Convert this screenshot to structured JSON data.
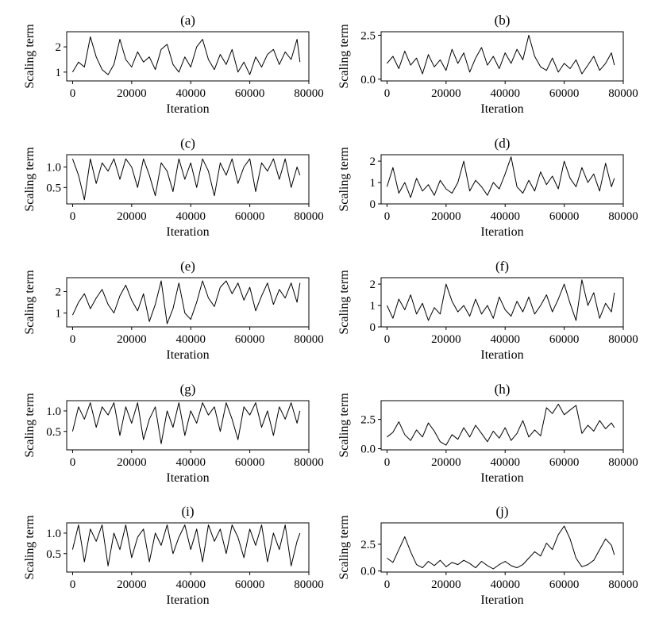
{
  "figure": {
    "series_color": "#000000",
    "background": "#ffffff"
  },
  "chart_data": [
    {
      "type": "line",
      "title": "(a)",
      "xlabel": "Iteration",
      "ylabel": "Scaling term",
      "xlim": [
        -2000,
        80000
      ],
      "ylim": [
        0.65,
        2.6
      ],
      "xticks": [
        0,
        20000,
        40000,
        60000,
        80000
      ],
      "yticks": [
        1,
        2
      ],
      "grid": false,
      "x": [
        0,
        2000,
        4000,
        6000,
        8000,
        10000,
        12000,
        14000,
        16000,
        18000,
        20000,
        22000,
        24000,
        26000,
        28000,
        30000,
        32000,
        34000,
        36000,
        38000,
        40000,
        42000,
        44000,
        46000,
        48000,
        50000,
        52000,
        54000,
        56000,
        58000,
        60000,
        62000,
        64000,
        66000,
        68000,
        70000,
        72000,
        74000,
        76000,
        77000
      ],
      "y": [
        1.0,
        1.4,
        1.2,
        2.4,
        1.6,
        1.1,
        0.9,
        1.3,
        2.3,
        1.5,
        1.2,
        1.8,
        1.4,
        1.6,
        1.1,
        1.9,
        2.1,
        1.3,
        1.0,
        1.6,
        1.2,
        2.0,
        2.3,
        1.5,
        1.1,
        1.7,
        1.3,
        1.9,
        1.0,
        1.4,
        0.9,
        1.6,
        1.2,
        1.7,
        1.9,
        1.3,
        1.8,
        1.5,
        2.3,
        1.4
      ]
    },
    {
      "type": "line",
      "title": "(b)",
      "xlabel": "Iteration",
      "ylabel": "Scaling term",
      "xlim": [
        -2000,
        80000
      ],
      "ylim": [
        -0.1,
        2.7
      ],
      "xticks": [
        0,
        20000,
        40000,
        60000,
        80000
      ],
      "yticks": [
        0.0,
        2.5
      ],
      "grid": false,
      "x": [
        0,
        2000,
        4000,
        6000,
        8000,
        10000,
        12000,
        14000,
        16000,
        18000,
        20000,
        22000,
        24000,
        26000,
        28000,
        30000,
        32000,
        34000,
        36000,
        38000,
        40000,
        42000,
        44000,
        46000,
        48000,
        50000,
        52000,
        54000,
        56000,
        58000,
        60000,
        62000,
        64000,
        66000,
        68000,
        70000,
        72000,
        74000,
        76000,
        77000
      ],
      "y": [
        0.9,
        1.3,
        0.6,
        1.6,
        0.8,
        1.2,
        0.3,
        1.4,
        0.7,
        1.1,
        0.5,
        1.7,
        0.9,
        1.5,
        0.4,
        1.2,
        1.8,
        0.8,
        1.3,
        0.6,
        1.5,
        0.9,
        1.7,
        1.1,
        2.5,
        1.3,
        0.7,
        0.5,
        1.2,
        0.4,
        0.9,
        0.6,
        1.1,
        0.3,
        0.8,
        1.3,
        0.5,
        0.9,
        1.5,
        0.8
      ]
    },
    {
      "type": "line",
      "title": "(c)",
      "xlabel": "Iteration",
      "ylabel": "Scaling term",
      "xlim": [
        -2000,
        80000
      ],
      "ylim": [
        0.1,
        1.3
      ],
      "xticks": [
        0,
        20000,
        40000,
        60000,
        80000
      ],
      "yticks": [
        0.5,
        1.0
      ],
      "grid": false,
      "x": [
        0,
        2000,
        4000,
        6000,
        8000,
        10000,
        12000,
        14000,
        16000,
        18000,
        20000,
        22000,
        24000,
        26000,
        28000,
        30000,
        32000,
        34000,
        36000,
        38000,
        40000,
        42000,
        44000,
        46000,
        48000,
        50000,
        52000,
        54000,
        56000,
        58000,
        60000,
        62000,
        64000,
        66000,
        68000,
        70000,
        72000,
        74000,
        76000,
        77000
      ],
      "y": [
        1.2,
        0.8,
        0.2,
        1.2,
        0.6,
        1.1,
        0.9,
        1.2,
        0.7,
        1.2,
        1.0,
        0.5,
        1.2,
        0.8,
        0.3,
        1.1,
        0.9,
        0.4,
        1.2,
        0.7,
        1.1,
        0.5,
        1.2,
        0.9,
        0.3,
        1.1,
        0.8,
        1.2,
        0.6,
        1.0,
        1.2,
        0.4,
        1.1,
        0.9,
        1.2,
        0.7,
        1.2,
        0.5,
        1.0,
        0.8
      ]
    },
    {
      "type": "line",
      "title": "(d)",
      "xlabel": "Iteration",
      "ylabel": "Scaling term",
      "xlim": [
        -2000,
        80000
      ],
      "ylim": [
        0,
        2.3
      ],
      "xticks": [
        0,
        20000,
        40000,
        60000,
        80000
      ],
      "yticks": [
        0,
        1,
        2
      ],
      "grid": false,
      "x": [
        0,
        2000,
        4000,
        6000,
        8000,
        10000,
        12000,
        14000,
        16000,
        18000,
        20000,
        22000,
        24000,
        26000,
        28000,
        30000,
        32000,
        34000,
        36000,
        38000,
        40000,
        42000,
        44000,
        46000,
        48000,
        50000,
        52000,
        54000,
        56000,
        58000,
        60000,
        62000,
        64000,
        66000,
        68000,
        70000,
        72000,
        74000,
        76000,
        77000
      ],
      "y": [
        0.8,
        1.7,
        0.5,
        1.0,
        0.3,
        1.2,
        0.6,
        0.9,
        0.4,
        1.1,
        0.7,
        0.5,
        1.0,
        2.0,
        0.6,
        1.1,
        0.8,
        0.4,
        1.0,
        0.7,
        1.4,
        2.2,
        0.8,
        0.5,
        1.1,
        0.6,
        1.5,
        0.9,
        1.3,
        0.7,
        2.0,
        1.2,
        0.8,
        1.7,
        1.0,
        1.4,
        0.6,
        1.9,
        0.8,
        1.2
      ]
    },
    {
      "type": "line",
      "title": "(e)",
      "xlabel": "Iteration",
      "ylabel": "Scaling term",
      "xlim": [
        -2000,
        80000
      ],
      "ylim": [
        0.35,
        2.65
      ],
      "xticks": [
        0,
        20000,
        40000,
        60000,
        80000
      ],
      "yticks": [
        1,
        2
      ],
      "grid": false,
      "x": [
        0,
        2000,
        4000,
        6000,
        8000,
        10000,
        12000,
        14000,
        16000,
        18000,
        20000,
        22000,
        24000,
        26000,
        28000,
        30000,
        32000,
        34000,
        36000,
        38000,
        40000,
        42000,
        44000,
        46000,
        48000,
        50000,
        52000,
        54000,
        56000,
        58000,
        60000,
        62000,
        64000,
        66000,
        68000,
        70000,
        72000,
        74000,
        76000,
        77000
      ],
      "y": [
        0.9,
        1.5,
        1.9,
        1.2,
        1.7,
        2.1,
        1.4,
        1.0,
        1.8,
        2.3,
        1.6,
        1.1,
        1.9,
        0.6,
        1.4,
        2.5,
        0.5,
        1.2,
        2.4,
        1.0,
        0.7,
        1.5,
        2.5,
        1.7,
        1.3,
        2.2,
        2.5,
        1.9,
        2.4,
        1.6,
        2.2,
        1.1,
        1.8,
        2.4,
        1.4,
        2.1,
        1.7,
        2.4,
        1.5,
        2.4
      ]
    },
    {
      "type": "line",
      "title": "(f)",
      "xlabel": "Iteration",
      "ylabel": "Scaling term",
      "xlim": [
        -2000,
        80000
      ],
      "ylim": [
        0,
        2.3
      ],
      "xticks": [
        0,
        20000,
        40000,
        60000,
        80000
      ],
      "yticks": [
        0,
        1,
        2
      ],
      "grid": false,
      "x": [
        0,
        2000,
        4000,
        6000,
        8000,
        10000,
        12000,
        14000,
        16000,
        18000,
        20000,
        22000,
        24000,
        26000,
        28000,
        30000,
        32000,
        34000,
        36000,
        38000,
        40000,
        42000,
        44000,
        46000,
        48000,
        50000,
        52000,
        54000,
        56000,
        58000,
        60000,
        62000,
        64000,
        66000,
        68000,
        70000,
        72000,
        74000,
        76000,
        77000
      ],
      "y": [
        1.0,
        0.4,
        1.3,
        0.8,
        1.5,
        0.6,
        1.1,
        0.3,
        0.9,
        0.6,
        2.0,
        1.2,
        0.7,
        1.0,
        0.5,
        1.3,
        0.6,
        1.0,
        0.4,
        1.4,
        0.8,
        0.5,
        1.2,
        0.7,
        1.4,
        0.6,
        1.0,
        1.5,
        0.7,
        1.3,
        2.0,
        1.1,
        0.3,
        2.2,
        1.0,
        1.6,
        0.4,
        1.1,
        0.7,
        1.6
      ]
    },
    {
      "type": "line",
      "title": "(g)",
      "xlabel": "Iteration",
      "ylabel": "Scaling term",
      "xlim": [
        -2000,
        80000
      ],
      "ylim": [
        0.05,
        1.25
      ],
      "xticks": [
        0,
        20000,
        40000,
        60000,
        80000
      ],
      "yticks": [
        0.5,
        1.0
      ],
      "grid": false,
      "x": [
        0,
        2000,
        4000,
        6000,
        8000,
        10000,
        12000,
        14000,
        16000,
        18000,
        20000,
        22000,
        24000,
        26000,
        28000,
        30000,
        32000,
        34000,
        36000,
        38000,
        40000,
        42000,
        44000,
        46000,
        48000,
        50000,
        52000,
        54000,
        56000,
        58000,
        60000,
        62000,
        64000,
        66000,
        68000,
        70000,
        72000,
        74000,
        76000,
        77000
      ],
      "y": [
        0.5,
        1.1,
        0.8,
        1.2,
        0.6,
        1.1,
        0.9,
        1.2,
        0.4,
        1.1,
        0.7,
        1.2,
        0.3,
        0.8,
        1.1,
        0.2,
        1.0,
        0.6,
        1.2,
        0.4,
        1.0,
        0.7,
        1.2,
        0.9,
        1.1,
        0.5,
        1.2,
        0.8,
        0.3,
        1.1,
        0.9,
        1.2,
        0.6,
        1.0,
        0.4,
        1.1,
        0.8,
        1.2,
        0.7,
        1.0
      ]
    },
    {
      "type": "line",
      "title": "(h)",
      "xlabel": "Iteration",
      "ylabel": "Scaling term",
      "xlim": [
        -2000,
        80000
      ],
      "ylim": [
        -0.1,
        4.1
      ],
      "xticks": [
        0,
        20000,
        40000,
        60000,
        80000
      ],
      "yticks": [
        0.0,
        2.5
      ],
      "grid": false,
      "x": [
        0,
        2000,
        4000,
        6000,
        8000,
        10000,
        12000,
        14000,
        16000,
        18000,
        20000,
        22000,
        24000,
        26000,
        28000,
        30000,
        32000,
        34000,
        36000,
        38000,
        40000,
        42000,
        44000,
        46000,
        48000,
        50000,
        52000,
        54000,
        56000,
        58000,
        60000,
        62000,
        64000,
        66000,
        68000,
        70000,
        72000,
        74000,
        76000,
        77000
      ],
      "y": [
        1.0,
        1.4,
        2.3,
        1.2,
        0.7,
        1.6,
        1.0,
        2.2,
        1.5,
        0.6,
        0.3,
        1.2,
        0.8,
        1.8,
        1.0,
        2.0,
        1.3,
        0.6,
        1.5,
        0.9,
        1.8,
        0.7,
        1.3,
        2.4,
        1.0,
        1.6,
        1.1,
        3.5,
        3.0,
        3.8,
        2.9,
        3.3,
        3.7,
        1.3,
        2.0,
        1.5,
        2.4,
        1.7,
        2.2,
        1.8
      ]
    },
    {
      "type": "line",
      "title": "(i)",
      "xlabel": "Iteration",
      "ylabel": "Scaling term",
      "xlim": [
        -2000,
        80000
      ],
      "ylim": [
        0.05,
        1.25
      ],
      "xticks": [
        0,
        20000,
        40000,
        60000,
        80000
      ],
      "yticks": [
        0.5,
        1.0
      ],
      "grid": false,
      "x": [
        0,
        2000,
        4000,
        6000,
        8000,
        10000,
        12000,
        14000,
        16000,
        18000,
        20000,
        22000,
        24000,
        26000,
        28000,
        30000,
        32000,
        34000,
        36000,
        38000,
        40000,
        42000,
        44000,
        46000,
        48000,
        50000,
        52000,
        54000,
        56000,
        58000,
        60000,
        62000,
        64000,
        66000,
        68000,
        70000,
        72000,
        74000,
        76000,
        77000
      ],
      "y": [
        0.6,
        1.2,
        0.3,
        1.1,
        0.8,
        1.2,
        0.2,
        1.0,
        0.6,
        1.2,
        0.4,
        0.9,
        1.1,
        0.3,
        1.0,
        0.7,
        1.2,
        0.5,
        0.9,
        1.2,
        0.6,
        1.1,
        0.3,
        1.2,
        0.8,
        1.1,
        0.5,
        1.2,
        0.9,
        0.4,
        1.1,
        0.7,
        1.2,
        0.3,
        1.0,
        0.6,
        1.2,
        0.2,
        0.8,
        1.0
      ]
    },
    {
      "type": "line",
      "title": "(j)",
      "xlabel": "Iteration",
      "ylabel": "Scaling term",
      "xlim": [
        -2000,
        80000
      ],
      "ylim": [
        -0.1,
        4.5
      ],
      "xticks": [
        0,
        20000,
        40000,
        60000,
        80000
      ],
      "yticks": [
        0.0,
        2.5
      ],
      "grid": false,
      "x": [
        0,
        2000,
        4000,
        6000,
        8000,
        10000,
        12000,
        14000,
        16000,
        18000,
        20000,
        22000,
        24000,
        26000,
        28000,
        30000,
        32000,
        34000,
        36000,
        38000,
        40000,
        42000,
        44000,
        46000,
        48000,
        50000,
        52000,
        54000,
        56000,
        58000,
        60000,
        62000,
        64000,
        66000,
        68000,
        70000,
        72000,
        74000,
        76000,
        77000
      ],
      "y": [
        1.2,
        0.8,
        2.0,
        3.2,
        1.8,
        0.6,
        0.3,
        0.9,
        0.5,
        1.0,
        0.4,
        0.8,
        0.6,
        1.0,
        0.7,
        0.3,
        0.9,
        0.5,
        0.2,
        0.6,
        0.9,
        0.5,
        0.3,
        0.6,
        1.2,
        1.8,
        1.4,
        2.6,
        2.0,
        3.4,
        4.2,
        3.0,
        1.2,
        0.4,
        0.6,
        1.0,
        2.0,
        3.0,
        2.4,
        1.5
      ]
    }
  ]
}
